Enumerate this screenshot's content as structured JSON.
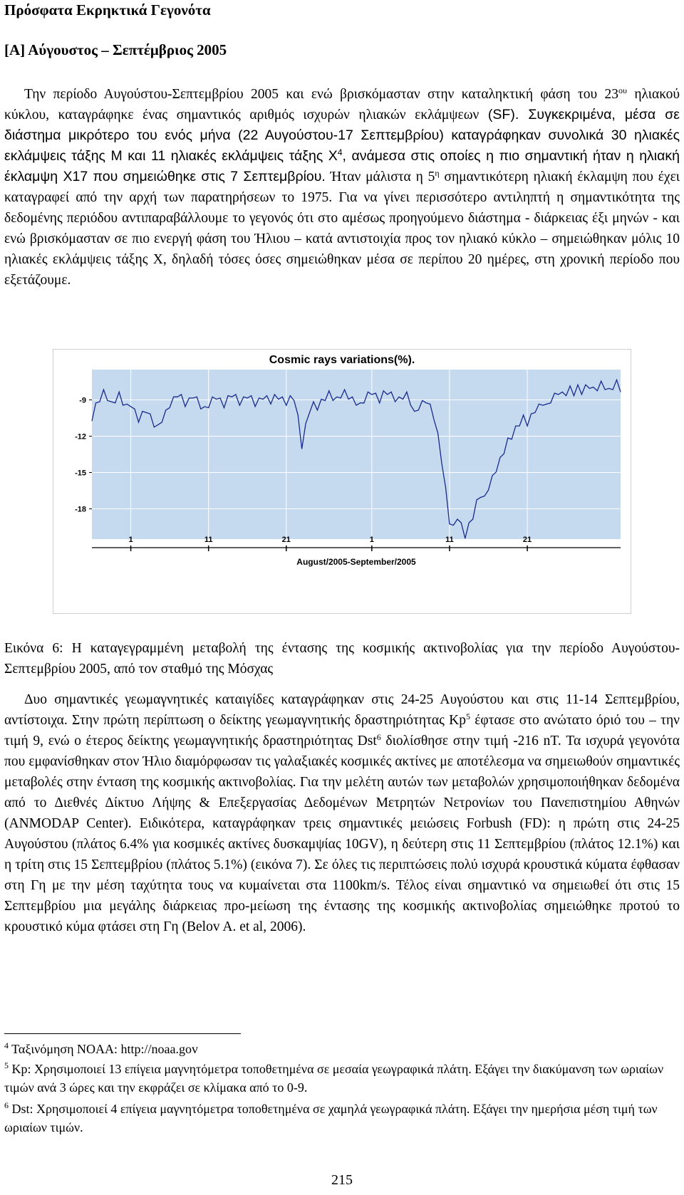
{
  "heading": "Πρόσφατα Εκρηκτικά Γεγονότα",
  "subheading": "[Α] Αύγουστος – Σεπτέμβριος 2005",
  "p1": {
    "a": "Την περίοδο Αυγούστου-Σεπτεμβρίου 2005 και ενώ βρισκόμασταν στην καταληκτική φάση του 23",
    "sup1": "ου",
    "b": " ηλιακού κύκλου, καταγράφηκε ένας σημαντικός αριθμός ισχυρών ηλιακών εκλάμψεων ",
    "c": "(SF). Συγκεκριμένα, μέσα σε διάστημα μικρότερο του ενός μήνα (22 Αυγούστου-17 Σεπτεμβρίου) καταγράφηκαν συνολικά 30 ηλιακές εκλάμψεις τάξης Μ και 11 ηλιακές εκλάμψεις τάξης Χ",
    "sup2": "4",
    "d": ", ανάμεσα στις οποίες η πιο σημαντική ήταν η ηλιακή έκλαμψη Χ17 που σημειώθηκε στις 7 Σεπτεμβρίου.",
    "e": " Ήταν μάλιστα η 5",
    "sup3": "η",
    "f": " σημαντικότερη ηλιακή έκλαμψη που έχει καταγραφεί από την αρχή των παρατηρήσεων το 1975. Για να γίνει περισσότερο αντιληπτή η σημαντικότητα της δεδομένης περιόδου αντιπαραβάλλουμε το γεγονός ότι στο αμέσως προηγούμενο διάστημα - διάρκειας έξι μηνών - και ενώ βρισκόμασταν σε πιο ενεργή φάση του Ήλιου – κατά αντιστοιχία προς τον ηλιακό κύκλο – σημειώθηκαν μόλις 10 ηλιακές εκλάμψεις τάξης Χ, δηλαδή τόσες όσες σημειώθηκαν μέσα σε περίπου 20 ημέρες, στη χρονική περίοδο που εξετάζουμε."
  },
  "caption": "Εικόνα 6: Η καταγεγραμμένη μεταβολή της έντασης της κοσμικής ακτινοβολίας για την περίοδο Αυγούστου-Σεπτεμβρίου 2005, από τον σταθμό της Μόσχας",
  "p3": {
    "a": "Δυο σημαντικές γεωμαγνητικές καταιγίδες καταγράφηκαν στις 24-25 Αυγούστου και στις 11-14 Σεπτεμβρίου, αντίστοιχα. Στην πρώτη περίπτωση ο δείκτης γεωμαγνητικής δραστηριότητας Kp",
    "sup1": "5",
    "b": " έφτασε στο ανώτατο όριό του – την τιμή 9, ενώ ο έτερος δείκτης γεωμαγνητικής δραστηριότητας Dst",
    "sup2": "6",
    "c": " διολίσθησε στην τιμή -216 nT. Τα ισχυρά γεγονότα που εμφανίσθηκαν στον Ήλιο διαμόρφωσαν τις γαλαξιακές κοσμικές ακτίνες με αποτέλεσμα να σημειωθούν σημαντικές μεταβολές στην ένταση της κοσμικής ακτινοβολίας. Για την μελέτη αυτών των μεταβολών χρησιμοποιήθηκαν δεδομένα από το Διεθνές Δίκτυο Λήψης & Επεξεργασίας Δεδομένων Μετρητών Νετρονίων του Πανεπιστημίου Αθηνών (ANMODAP Center). Ειδικότερα, καταγράφηκαν τρεις σημαντικές μειώσεις Forbush (FD): η πρώτη στις 24-25 Αυγούστου (πλάτος 6.4% για κοσμικές ακτίνες δυσκαμψίας 10GV), η δεύτερη στις 11 Σεπτεμβρίου (πλάτος 12.1%) και η τρίτη στις 15 Σεπτεμβρίου (πλάτος 5.1%) (εικόνα 7). Σε όλες τις περιπτώσεις πολύ ισχυρά κρουστικά κύματα έφθασαν στη Γη με την μέση ταχύτητα τους να κυμαίνεται στα 1100km/s. Τέλος είναι σημαντικό να σημειωθεί ότι στις 15 Σεπτεμβρίου μια μεγάλης διάρκειας προ-μείωση της έντασης της κοσμικής ακτινοβολίας σημειώθηκε προτού το κρουστικό κύμα φτάσει στη Γη (Belov A. et al, 2006)."
  },
  "footnotes": {
    "n4": "4",
    "t4": " Ταξινόμηση NOAA: http://noaa.gov",
    "n5": "5",
    "t5": " Kp: Χρησιμοποιεί 13 επίγεια μαγνητόμετρα τοποθετημένα σε μεσαία γεωγραφικά πλάτη. Εξάγει την διακύμανση των ωριαίων τιμών ανά 3 ώρες και την εκφράζει σε κλίμακα από το 0-9.",
    "n6": "6",
    "t6": " Dst: Χρησιμοποιεί 4 επίγεια μαγνητόμετρα τοποθετημένα σε χαμηλά γεωγραφικά πλάτη. Εξάγει την ημερήσια μέση τιμή των ωριαίων τιμών."
  },
  "page_number": "215",
  "chart_data": {
    "type": "line",
    "title": "Cosmic rays variations(%).",
    "xlabel": "August/2005-September/2005",
    "ylabel": "",
    "ylim": [
      -20.5,
      -6.5
    ],
    "y_ticks": [
      -9,
      -12,
      -15,
      -18
    ],
    "x_ticks": [
      {
        "day": 1,
        "label": "1"
      },
      {
        "day": 11,
        "label": "11"
      },
      {
        "day": 21,
        "label": "21"
      },
      {
        "day": 32,
        "label": "1"
      },
      {
        "day": 42,
        "label": "11"
      },
      {
        "day": 52,
        "label": "21"
      }
    ],
    "xlim": [
      -4,
      64
    ],
    "color_background": "#c5d9ef",
    "color_line": "#1a2a8c",
    "series": [
      {
        "x": [
          -4,
          -3.5,
          -3,
          -2.5,
          -2,
          -1.5,
          -1,
          -0.5,
          0,
          0.5,
          1,
          1.5,
          2,
          2.5,
          3,
          3.5,
          4,
          4.5,
          5,
          5.5,
          6,
          6.5,
          7,
          7.5,
          8,
          8.5,
          9,
          9.5,
          10,
          10.5,
          11,
          11.5,
          12,
          12.5,
          13,
          13.5,
          14,
          14.5,
          15,
          15.5,
          16,
          16.5,
          17,
          17.5,
          18,
          18.5,
          19,
          19.5,
          20,
          20.5,
          21,
          21.5,
          22,
          22.5,
          23,
          23.5,
          24,
          24.5,
          25,
          25.5,
          26,
          26.5,
          27,
          27.5,
          28,
          28.5,
          29,
          29.5,
          30,
          30.5,
          31,
          31.5,
          32,
          32.5,
          33,
          33.5,
          34,
          34.5,
          35,
          35.5,
          36,
          36.5,
          37,
          37.5,
          38,
          38.5,
          39,
          39.5,
          40,
          40.5,
          41,
          41.5,
          42,
          42.5,
          43,
          43.5,
          44,
          44.5,
          45,
          45.5,
          46,
          46.5,
          47,
          47.5,
          48,
          48.5,
          49,
          49.5,
          50,
          50.5,
          51,
          51.5,
          52,
          52.5,
          53,
          53.5,
          54,
          54.5,
          55,
          55.5,
          56,
          56.5,
          57,
          57.5,
          58,
          58.5,
          59,
          59.5,
          60,
          60.5,
          61,
          61.5,
          62,
          62.5,
          63,
          63.5,
          64
        ],
        "y": [
          -10.5,
          -9.5,
          -8.9,
          -8.4,
          -8.8,
          -9.4,
          -9.0,
          -8.6,
          -9.2,
          -9.6,
          -9.3,
          -10.0,
          -10.6,
          -10.2,
          -9.8,
          -10.4,
          -11.0,
          -11.3,
          -10.6,
          -10.1,
          -9.4,
          -9.0,
          -8.5,
          -8.8,
          -9.3,
          -9.1,
          -8.6,
          -9.0,
          -9.5,
          -9.8,
          -9.4,
          -9.0,
          -8.7,
          -9.1,
          -9.4,
          -8.9,
          -8.5,
          -8.8,
          -9.2,
          -9.0,
          -8.6,
          -8.9,
          -9.3,
          -9.1,
          -8.7,
          -8.9,
          -9.1,
          -8.8,
          -8.7,
          -9.0,
          -9.2,
          -8.9,
          -8.8,
          -10.5,
          -12.8,
          -11.2,
          -9.8,
          -9.4,
          -9.6,
          -9.2,
          -8.8,
          -8.5,
          -8.8,
          -9.0,
          -8.6,
          -8.4,
          -8.7,
          -9.0,
          -9.2,
          -9.5,
          -9.0,
          -8.6,
          -8.3,
          -8.7,
          -9.0,
          -8.5,
          -8.3,
          -8.6,
          -8.9,
          -9.0,
          -8.7,
          -8.6,
          -9.2,
          -10.2,
          -9.6,
          -9.3,
          -9.0,
          -9.6,
          -10.4,
          -12.0,
          -14.0,
          -16.5,
          -19.0,
          -19.6,
          -18.6,
          -19.4,
          -20.2,
          -19.4,
          -18.6,
          -17.5,
          -16.8,
          -17.2,
          -16.2,
          -15.5,
          -14.7,
          -14.0,
          -13.2,
          -12.4,
          -12.0,
          -11.4,
          -10.9,
          -10.5,
          -10.9,
          -10.4,
          -9.8,
          -9.6,
          -9.2,
          -9.6,
          -9.0,
          -8.7,
          -8.3,
          -8.6,
          -8.4,
          -8.1,
          -8.4,
          -8.0,
          -8.3,
          -8.0,
          -7.8,
          -8.2,
          -8.0,
          -7.7,
          -7.9,
          -8.3,
          -7.9,
          -7.6,
          -8.1
        ]
      }
    ]
  }
}
